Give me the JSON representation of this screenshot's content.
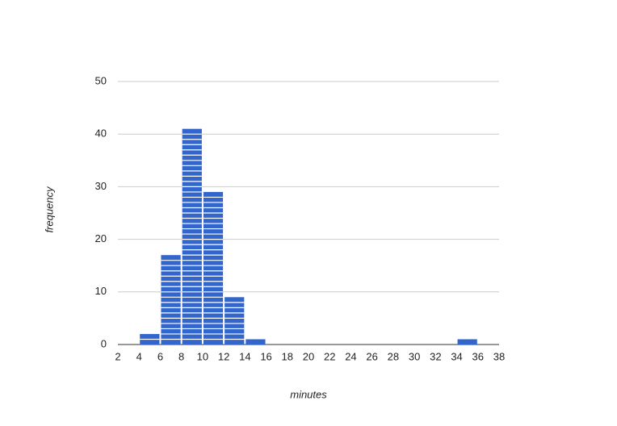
{
  "chart_data": {
    "type": "histogram",
    "x_label": "minutes",
    "y_label": "frequency",
    "bins": [
      2,
      4,
      6,
      8,
      10,
      12,
      14,
      16,
      18,
      20,
      22,
      24,
      26,
      28,
      30,
      32,
      34,
      36,
      38
    ],
    "values": [
      0,
      2,
      17,
      41,
      29,
      9,
      1,
      0,
      0,
      0,
      0,
      0,
      0,
      0,
      0,
      0,
      1,
      0
    ],
    "color": "#3366cc",
    "xlim": [
      2,
      38
    ],
    "xticks": [
      2,
      4,
      6,
      8,
      10,
      12,
      14,
      16,
      18,
      20,
      22,
      24,
      26,
      28,
      30,
      32,
      34,
      36,
      38
    ],
    "ylim": [
      0,
      50
    ],
    "yticks": [
      0,
      10,
      20,
      30,
      40,
      50
    ],
    "grid": true
  }
}
